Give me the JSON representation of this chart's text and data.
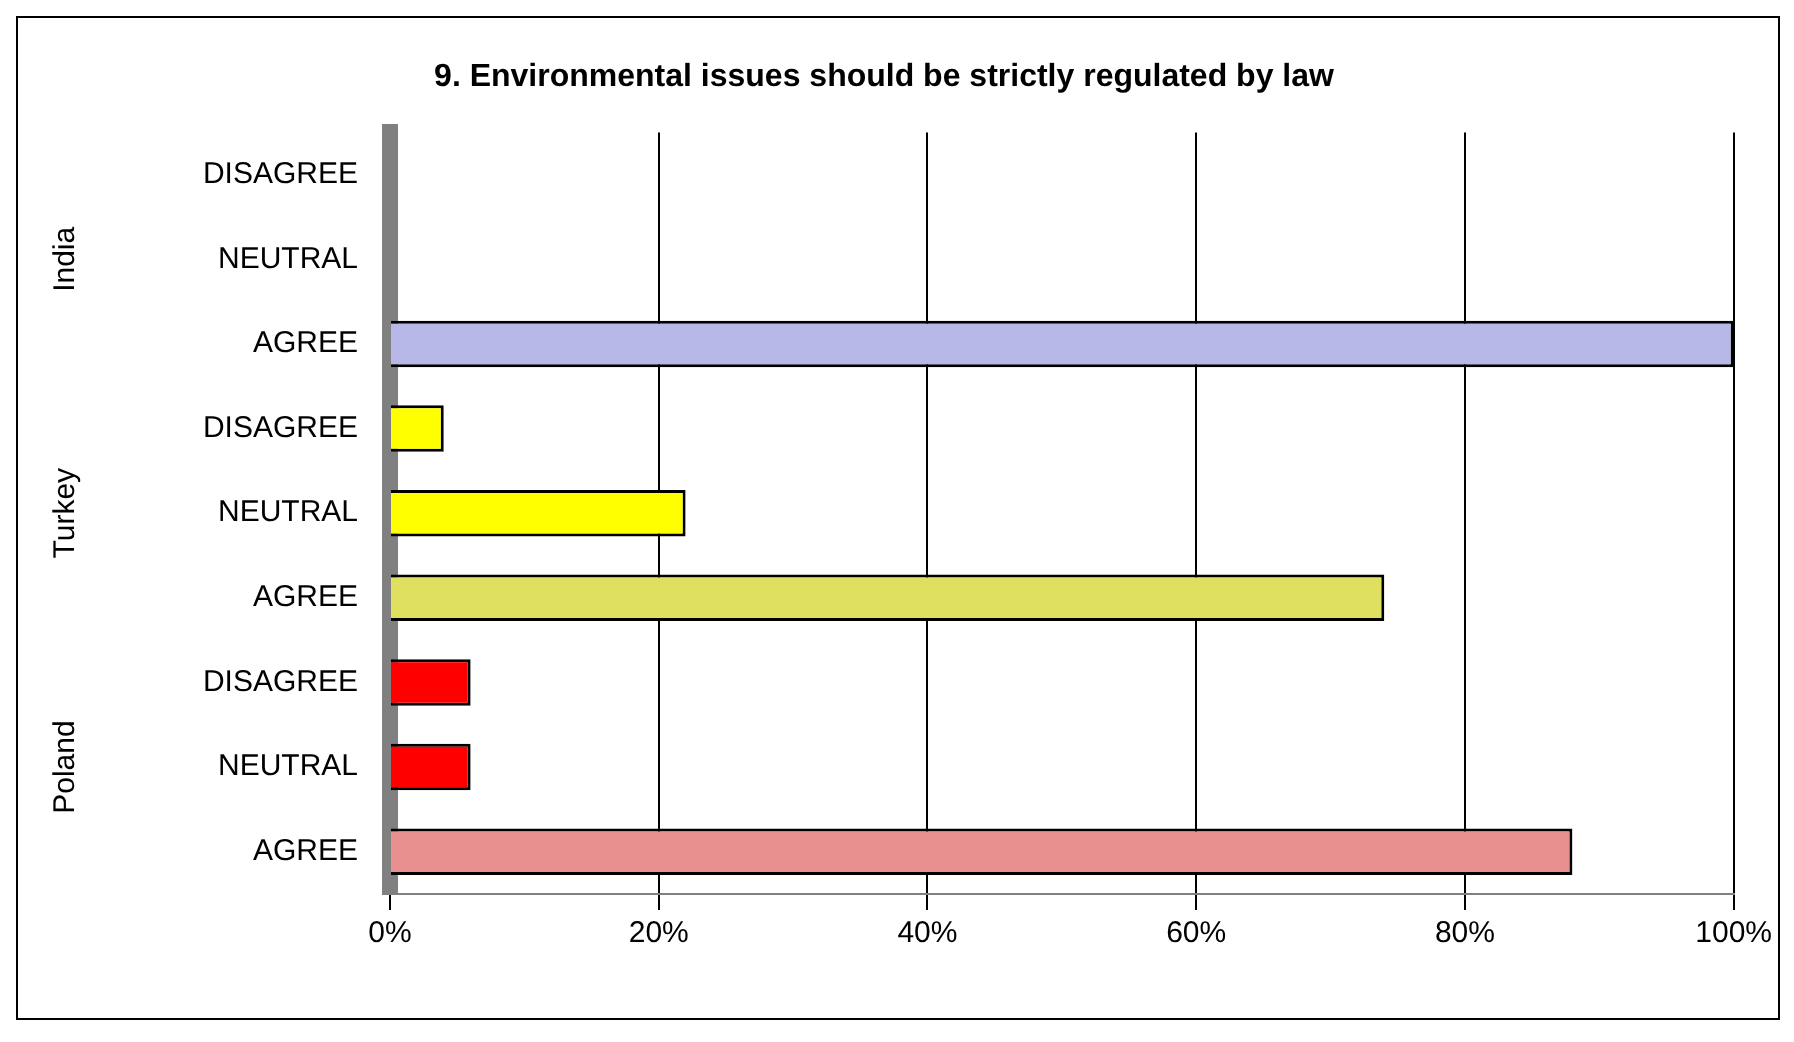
{
  "chart_data": {
    "type": "bar",
    "orientation": "horizontal",
    "title": "9. Environmental issues should be strictly regulated by law",
    "categories": [
      "DISAGREE",
      "NEUTRAL",
      "AGREE",
      "DISAGREE",
      "NEUTRAL",
      "AGREE",
      "DISAGREE",
      "NEUTRAL",
      "AGREE"
    ],
    "values": [
      0,
      0,
      100,
      4,
      22,
      74,
      6,
      6,
      88
    ],
    "colors": [
      "#9999ff",
      "#9999ff",
      "#b8b8e8",
      "#ffff00",
      "#ffff00",
      "#e0e060",
      "#ff0000",
      "#ff0000",
      "#e89090"
    ],
    "annotations": [
      "India",
      "Turkey",
      "Poland"
    ],
    "xlim": [
      0,
      100
    ],
    "xticks": [
      {
        "value": 0,
        "label": "0%"
      },
      {
        "value": 20,
        "label": "20%"
      },
      {
        "value": 40,
        "label": "40%"
      },
      {
        "value": 60,
        "label": "60%"
      },
      {
        "value": 80,
        "label": "80%"
      },
      {
        "value": 100,
        "label": "100%"
      }
    ],
    "grid": "x",
    "legend": false
  }
}
